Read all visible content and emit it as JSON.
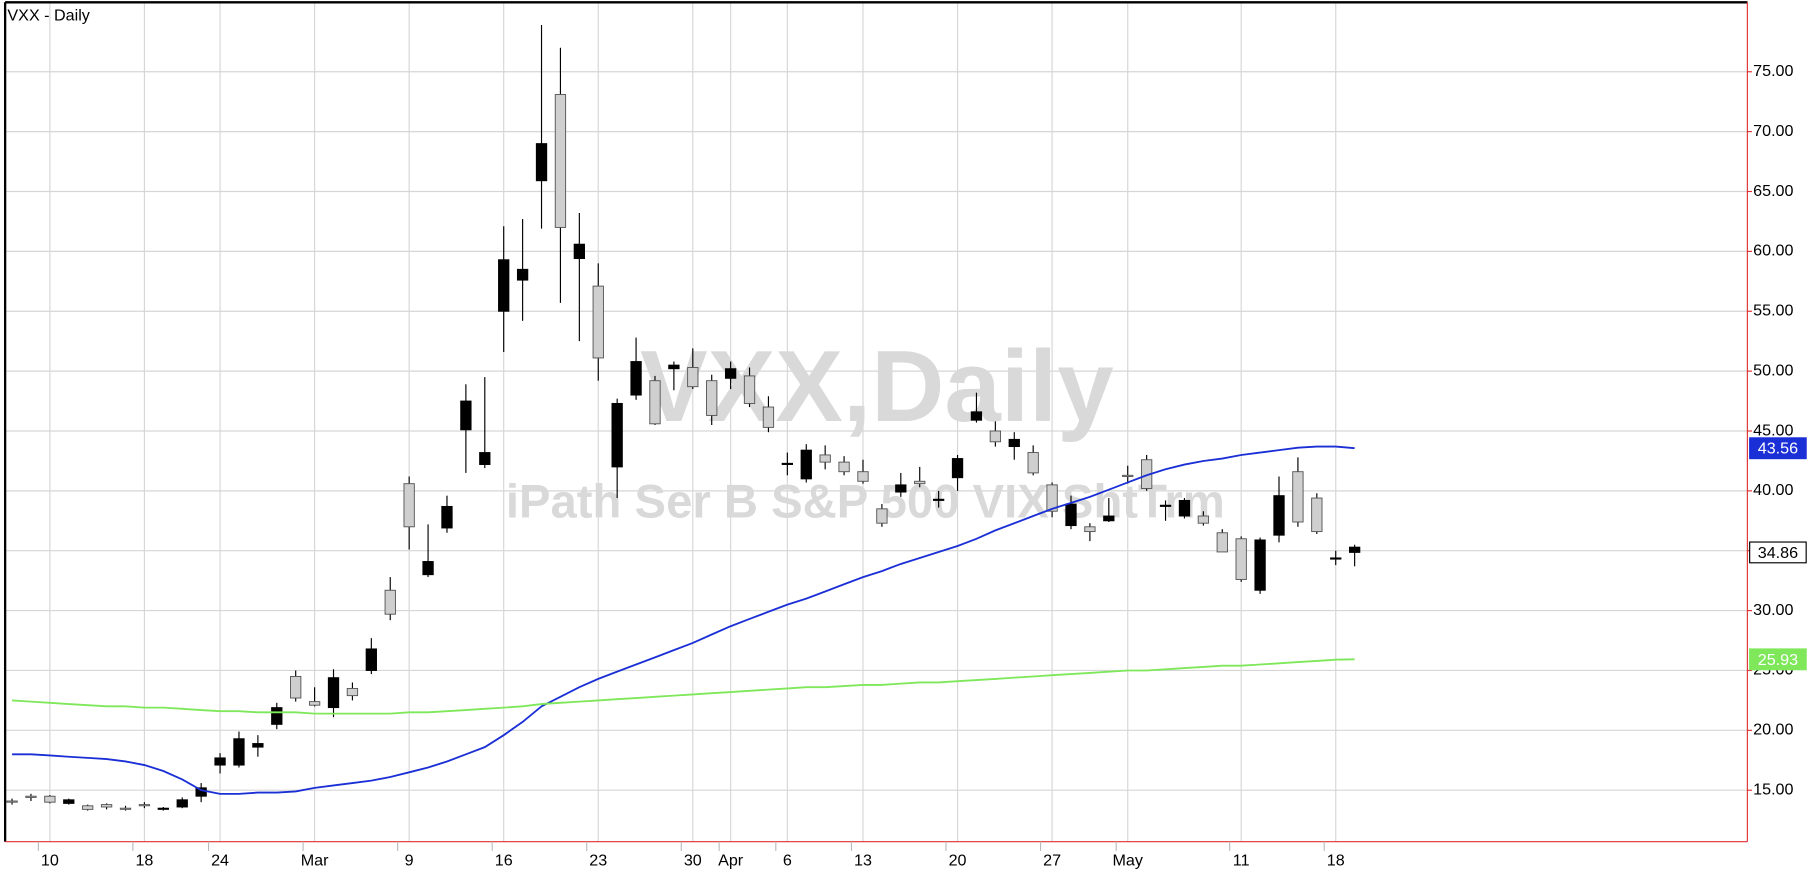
{
  "chart_data": {
    "type": "candlestick",
    "title": "VXX - Daily",
    "watermark": "VXX,Daily",
    "watermark_subtitle": "iPath Ser B S&P 500 VIX ShtTrm",
    "categories": [
      null,
      null,
      "10",
      null,
      null,
      null,
      null,
      "18",
      null,
      null,
      null,
      "24",
      null,
      null,
      null,
      null,
      "Mar",
      null,
      null,
      null,
      null,
      "9",
      null,
      null,
      null,
      null,
      "16",
      null,
      null,
      null,
      null,
      "23",
      null,
      null,
      null,
      null,
      "30",
      null,
      "Apr",
      null,
      null,
      "6",
      null,
      null,
      null,
      "13",
      null,
      null,
      null,
      null,
      "20",
      null,
      null,
      null,
      null,
      "27",
      null,
      null,
      null,
      "May",
      null,
      null,
      null,
      null,
      null,
      "11",
      null,
      null,
      null,
      null,
      "18",
      null
    ],
    "open": [
      14.0,
      14.4,
      14.0,
      14.2,
      13.4,
      13.6,
      13.5,
      13.7,
      13.5,
      14.2,
      15.2,
      17.7,
      19.3,
      18.9,
      21.9,
      22.7,
      22.1,
      24.4,
      22.9,
      26.8,
      29.7,
      37.0,
      34.1,
      38.7,
      47.5,
      43.2,
      59.3,
      58.5,
      69.0,
      62.0,
      60.6,
      51.1,
      47.3,
      50.8,
      45.6,
      50.5,
      48.7,
      46.3,
      50.2,
      47.3,
      45.3,
      42.3,
      43.4,
      42.4,
      41.6,
      40.8,
      37.3,
      40.5,
      40.6,
      39.3,
      42.7,
      46.6,
      44.1,
      44.3,
      41.5,
      38.3,
      38.9,
      36.6,
      37.9,
      41.2,
      40.2,
      38.8,
      39.2,
      37.3,
      34.9,
      32.6,
      35.9,
      39.6,
      37.4,
      36.6,
      34.4,
      35.3
    ],
    "high": [
      14.3,
      14.7,
      14.6,
      14.3,
      13.8,
      13.9,
      13.7,
      14.0,
      13.6,
      14.4,
      15.6,
      18.1,
      19.9,
      19.6,
      22.3,
      25.0,
      23.6,
      25.1,
      24.0,
      27.7,
      32.8,
      41.2,
      37.2,
      39.6,
      48.9,
      49.5,
      62.1,
      62.7,
      78.9,
      77.0,
      63.2,
      59.0,
      47.7,
      52.8,
      49.6,
      50.8,
      51.9,
      49.7,
      50.8,
      50.3,
      47.9,
      43.2,
      43.9,
      43.8,
      42.9,
      42.6,
      38.9,
      41.5,
      42.0,
      40.0,
      43.0,
      48.2,
      45.8,
      44.9,
      43.8,
      40.7,
      39.6,
      37.3,
      39.4,
      42.1,
      43.0,
      39.2,
      39.4,
      38.3,
      36.8,
      36.2,
      36.1,
      41.2,
      42.8,
      39.8,
      35.0,
      35.5
    ],
    "low": [
      13.8,
      14.1,
      13.9,
      13.8,
      13.3,
      13.4,
      13.3,
      13.5,
      13.3,
      13.5,
      14.0,
      16.4,
      16.9,
      17.8,
      20.1,
      22.4,
      22.0,
      21.1,
      22.5,
      24.7,
      29.2,
      35.1,
      32.8,
      36.5,
      41.5,
      41.9,
      51.6,
      54.2,
      61.9,
      55.7,
      52.5,
      49.2,
      39.4,
      47.6,
      45.5,
      48.4,
      48.5,
      45.5,
      48.5,
      47.0,
      44.9,
      41.3,
      40.7,
      41.8,
      41.3,
      40.6,
      37.0,
      39.5,
      40.3,
      38.6,
      40.0,
      45.7,
      43.7,
      42.6,
      41.3,
      37.8,
      36.8,
      35.8,
      37.4,
      40.6,
      40.0,
      37.5,
      37.7,
      37.1,
      34.9,
      32.4,
      31.4,
      35.7,
      37.0,
      36.4,
      33.8,
      33.7
    ],
    "close": [
      14.1,
      14.5,
      14.5,
      13.9,
      13.7,
      13.8,
      13.5,
      13.8,
      13.4,
      13.6,
      14.5,
      17.1,
      17.1,
      18.6,
      20.5,
      24.5,
      22.4,
      21.9,
      23.5,
      25.0,
      31.7,
      40.6,
      33.0,
      36.9,
      45.1,
      42.2,
      55.0,
      57.6,
      65.9,
      73.1,
      59.4,
      57.1,
      42.0,
      48.0,
      49.2,
      50.2,
      50.3,
      49.2,
      49.4,
      49.6,
      47.0,
      42.2,
      41.0,
      43.0,
      42.4,
      41.6,
      38.5,
      39.9,
      40.8,
      39.2,
      41.1,
      45.9,
      45.0,
      43.7,
      43.2,
      40.5,
      37.1,
      37.0,
      37.5,
      41.3,
      42.6,
      38.7,
      37.9,
      37.9,
      36.5,
      36.0,
      31.7,
      36.3,
      41.6,
      39.4,
      34.3,
      34.86
    ],
    "up_color": "#cfcfcf",
    "down_color": "#000000",
    "series": [
      {
        "color": "#1a2fd6",
        "values": [
          18.0,
          18.0,
          17.9,
          17.8,
          17.7,
          17.6,
          17.4,
          17.1,
          16.6,
          15.9,
          15.0,
          14.7,
          14.7,
          14.8,
          14.8,
          14.9,
          15.2,
          15.4,
          15.6,
          15.8,
          16.1,
          16.5,
          16.9,
          17.4,
          18.0,
          18.6,
          19.6,
          20.7,
          22.0,
          22.8,
          23.6,
          24.3,
          24.9,
          25.5,
          26.1,
          26.7,
          27.3,
          28.0,
          28.7,
          29.3,
          29.9,
          30.5,
          31.0,
          31.6,
          32.2,
          32.8,
          33.3,
          33.9,
          34.4,
          34.9,
          35.4,
          36.0,
          36.7,
          37.3,
          37.9,
          38.5,
          39.0,
          39.5,
          40.1,
          40.7,
          41.3,
          41.8,
          42.2,
          42.5,
          42.7,
          43.0,
          43.2,
          43.4,
          43.6,
          43.7,
          43.7,
          43.56
        ]
      },
      {
        "color": "#7ee85a",
        "values": [
          22.5,
          22.4,
          22.3,
          22.2,
          22.1,
          22.0,
          22.0,
          21.9,
          21.9,
          21.8,
          21.7,
          21.6,
          21.6,
          21.5,
          21.5,
          21.5,
          21.4,
          21.4,
          21.4,
          21.4,
          21.4,
          21.5,
          21.5,
          21.6,
          21.7,
          21.8,
          21.9,
          22.0,
          22.2,
          22.3,
          22.4,
          22.5,
          22.6,
          22.7,
          22.8,
          22.9,
          23.0,
          23.1,
          23.2,
          23.3,
          23.4,
          23.5,
          23.6,
          23.6,
          23.7,
          23.8,
          23.8,
          23.9,
          24.0,
          24.0,
          24.1,
          24.2,
          24.3,
          24.4,
          24.5,
          24.6,
          24.7,
          24.8,
          24.9,
          25.0,
          25.0,
          25.1,
          25.2,
          25.3,
          25.4,
          25.4,
          25.5,
          25.6,
          25.7,
          25.8,
          25.9,
          25.93
        ]
      }
    ],
    "ylim": [
      10.7,
      80.8
    ],
    "yticks": [
      {
        "value": 15,
        "label": "15.00"
      },
      {
        "value": 20,
        "label": "20.00"
      },
      {
        "value": 25,
        "label": "25.00"
      },
      {
        "value": 30,
        "label": "30.00"
      },
      {
        "value": 35,
        "label": "35.00"
      },
      {
        "value": 40,
        "label": "40.00"
      },
      {
        "value": 45,
        "label": "45.00"
      },
      {
        "value": 50,
        "label": "50.00"
      },
      {
        "value": 55,
        "label": "55.00"
      },
      {
        "value": 60,
        "label": "60.00"
      },
      {
        "value": 65,
        "label": "65.00"
      },
      {
        "value": 70,
        "label": "70.00"
      },
      {
        "value": 75,
        "label": "75.00"
      }
    ],
    "grid": true
  }
}
